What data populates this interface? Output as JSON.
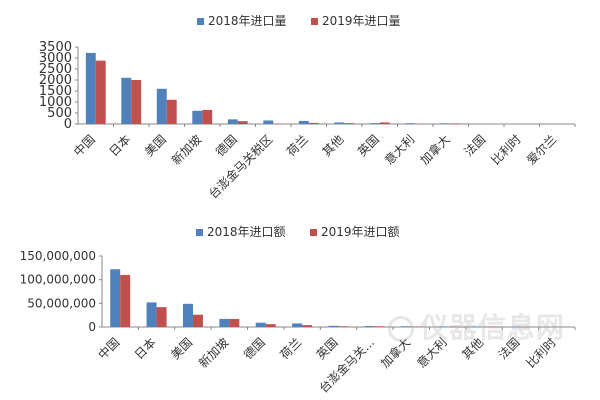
{
  "colors": {
    "series2018": "#4f81bd",
    "series2019": "#c0504d",
    "axis": "#888888",
    "text": "#333333"
  },
  "chart_data": [
    {
      "type": "bar",
      "legend_position": "top-center",
      "grid": false,
      "categories": [
        "中国",
        "日本",
        "美国",
        "新加坡",
        "德国",
        "台澎金马关税区",
        "荷兰",
        "其他",
        "英国",
        "意大利",
        "加拿大",
        "法国",
        "比利时",
        "爱尔兰"
      ],
      "series": [
        {
          "name": "2018年进口量",
          "values": [
            3230,
            2100,
            1600,
            600,
            210,
            160,
            140,
            70,
            40,
            35,
            30,
            10,
            5,
            3
          ]
        },
        {
          "name": "2019年进口量",
          "values": [
            2880,
            2000,
            1100,
            640,
            130,
            20,
            50,
            40,
            70,
            10,
            25,
            5,
            3,
            2
          ]
        }
      ],
      "ylim": [
        0,
        3500
      ],
      "yticks": [
        "0",
        "500",
        "1000",
        "1500",
        "2000",
        "2500",
        "3000",
        "3500"
      ],
      "tick_values": [
        0,
        500,
        1000,
        1500,
        2000,
        2500,
        3000,
        3500
      ]
    },
    {
      "type": "bar",
      "legend_position": "top-center",
      "grid": false,
      "categories": [
        "中国",
        "日本",
        "美国",
        "新加坡",
        "德国",
        "荷兰",
        "英国",
        "台澎金马关...",
        "加拿大",
        "意大利",
        "其他",
        "法国",
        "比利时"
      ],
      "series": [
        {
          "name": "2018年进口额",
          "values": [
            122000000,
            52000000,
            49000000,
            17000000,
            9000000,
            7500000,
            2500000,
            2000000,
            1500000,
            1200000,
            1000000,
            800000,
            500000
          ]
        },
        {
          "name": "2019年进口额",
          "values": [
            110000000,
            42000000,
            26000000,
            17000000,
            6000000,
            4000000,
            1500000,
            1500000,
            1000000,
            800000,
            700000,
            500000,
            300000
          ]
        }
      ],
      "ylim": [
        0,
        150000000
      ],
      "yticks": [
        "0",
        "50,000,000",
        "100,000,000",
        "150,000,000"
      ],
      "tick_values": [
        0,
        50000000,
        100000000,
        150000000
      ]
    }
  ],
  "watermark": {
    "text": "仪器信息网"
  }
}
